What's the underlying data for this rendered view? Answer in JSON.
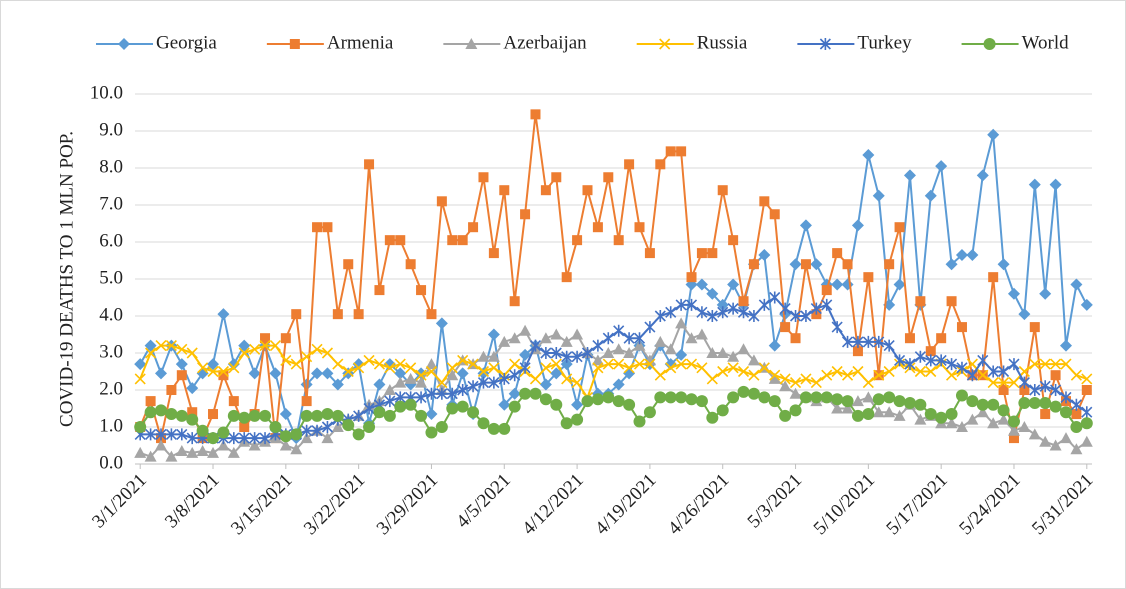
{
  "chart_data": {
    "type": "line",
    "y_label": "COVID-19 DEATHS TO 1 MLN POP.",
    "categories": [
      "3/1/2021",
      null,
      null,
      null,
      null,
      null,
      null,
      "3/8/2021",
      null,
      null,
      null,
      null,
      null,
      null,
      "3/15/2021",
      null,
      null,
      null,
      null,
      null,
      null,
      "3/22/2021",
      null,
      null,
      null,
      null,
      null,
      null,
      "3/29/2021",
      null,
      null,
      null,
      null,
      null,
      null,
      "4/5/2021",
      null,
      null,
      null,
      null,
      null,
      null,
      "4/12/2021",
      null,
      null,
      null,
      null,
      null,
      null,
      "4/19/2021",
      null,
      null,
      null,
      null,
      null,
      null,
      "4/26/2021",
      null,
      null,
      null,
      null,
      null,
      null,
      "5/3/2021",
      null,
      null,
      null,
      null,
      null,
      null,
      "5/10/2021",
      null,
      null,
      null,
      null,
      null,
      null,
      "5/17/2021",
      null,
      null,
      null,
      null,
      null,
      null,
      "5/24/2021",
      null,
      null,
      null,
      null,
      null,
      null,
      "5/31/2021"
    ],
    "ylim": [
      0,
      10
    ],
    "yticks": [
      {
        "value": 0,
        "label": "0.0"
      },
      {
        "value": 1,
        "label": "1.0"
      },
      {
        "value": 2,
        "label": "2.0"
      },
      {
        "value": 3,
        "label": "3.0"
      },
      {
        "value": 4,
        "label": "4.0"
      },
      {
        "value": 5,
        "label": "5.0"
      },
      {
        "value": 6,
        "label": "6.0"
      },
      {
        "value": 7,
        "label": "7.0"
      },
      {
        "value": 8,
        "label": "8.0"
      },
      {
        "value": 9,
        "label": "9.0"
      },
      {
        "value": 10,
        "label": "10.0"
      }
    ],
    "grid": true,
    "legend": "top",
    "series": [
      {
        "name": "Georgia",
        "color": "#5b9bd5",
        "marker": "diamond",
        "values": [
          2.7,
          3.2,
          2.45,
          3.2,
          2.7,
          2.05,
          2.45,
          2.7,
          4.05,
          2.7,
          3.2,
          2.45,
          3.2,
          2.45,
          1.35,
          0.7,
          2.15,
          2.45,
          2.45,
          2.15,
          2.45,
          2.7,
          1.1,
          2.15,
          2.7,
          2.45,
          2.15,
          2.45,
          1.35,
          3.8,
          1.6,
          2.45,
          1.35,
          2.45,
          3.5,
          1.6,
          1.9,
          2.95,
          3.2,
          2.15,
          2.45,
          2.7,
          1.6,
          2.95,
          1.9,
          1.9,
          2.15,
          2.45,
          3.2,
          2.7,
          3.2,
          2.7,
          2.95,
          4.85,
          4.85,
          4.6,
          4.3,
          4.85,
          4.3,
          5.4,
          5.65,
          3.2,
          4.05,
          5.4,
          6.45,
          5.4,
          4.85,
          4.85,
          4.85,
          6.45,
          8.35,
          7.25,
          4.3,
          4.85,
          7.8,
          4.3,
          7.25,
          8.05,
          5.4,
          5.65,
          5.65,
          7.8,
          8.9,
          5.4,
          4.6,
          4.05,
          7.55,
          4.6,
          7.55,
          3.2,
          4.85,
          4.3
        ]
      },
      {
        "name": "Armenia",
        "color": "#ed7d31",
        "marker": "square",
        "values": [
          1.0,
          1.7,
          0.7,
          2.0,
          2.4,
          1.4,
          0.7,
          1.35,
          2.4,
          1.7,
          1.0,
          1.35,
          3.4,
          0.7,
          3.4,
          4.05,
          1.7,
          6.4,
          6.4,
          4.05,
          5.4,
          4.05,
          8.1,
          4.7,
          6.05,
          6.05,
          5.4,
          4.7,
          4.05,
          7.1,
          6.05,
          6.05,
          6.4,
          7.75,
          5.7,
          7.4,
          4.4,
          6.75,
          9.45,
          7.4,
          7.75,
          5.05,
          6.05,
          7.4,
          6.4,
          7.75,
          6.05,
          8.1,
          6.4,
          5.7,
          8.1,
          8.45,
          8.45,
          5.05,
          5.7,
          5.7,
          7.4,
          6.05,
          4.4,
          5.4,
          7.1,
          6.75,
          3.7,
          3.4,
          5.4,
          4.05,
          4.7,
          5.7,
          5.4,
          3.05,
          5.05,
          2.4,
          5.4,
          6.4,
          3.4,
          4.4,
          3.05,
          3.4,
          4.4,
          3.7,
          2.4,
          2.4,
          5.05,
          2.0,
          0.7,
          2.0,
          3.7,
          1.35,
          2.4,
          1.7,
          1.35,
          2.0
        ]
      },
      {
        "name": "Azerbaijan",
        "color": "#a5a5a5",
        "marker": "triangle",
        "values": [
          0.3,
          0.2,
          0.5,
          0.2,
          0.35,
          0.3,
          0.35,
          0.3,
          0.5,
          0.3,
          0.6,
          0.5,
          0.6,
          0.7,
          0.5,
          0.4,
          0.7,
          0.9,
          0.7,
          1.0,
          1.2,
          1.3,
          1.6,
          1.7,
          2.0,
          2.2,
          2.3,
          2.2,
          2.7,
          2.0,
          2.4,
          2.8,
          2.7,
          2.9,
          2.9,
          3.3,
          3.4,
          3.6,
          3.1,
          3.4,
          3.5,
          3.3,
          3.5,
          3.0,
          2.8,
          3.0,
          3.1,
          3.0,
          3.2,
          2.8,
          3.3,
          3.1,
          3.8,
          3.4,
          3.5,
          3.0,
          3.0,
          2.9,
          3.1,
          2.8,
          2.6,
          2.3,
          2.1,
          1.9,
          1.8,
          1.7,
          1.8,
          1.5,
          1.5,
          1.7,
          1.8,
          1.4,
          1.4,
          1.3,
          1.6,
          1.2,
          1.3,
          1.1,
          1.1,
          1.0,
          1.2,
          1.4,
          1.1,
          1.2,
          0.9,
          1.0,
          0.8,
          0.6,
          0.5,
          0.7,
          0.4,
          0.6
        ]
      },
      {
        "name": "Russia",
        "color": "#ffc000",
        "marker": "x",
        "values": [
          2.3,
          3.0,
          3.2,
          3.2,
          3.1,
          3.0,
          2.6,
          2.5,
          2.5,
          2.6,
          3.0,
          3.1,
          3.2,
          3.2,
          2.8,
          2.7,
          2.9,
          3.1,
          3.0,
          2.7,
          2.5,
          2.6,
          2.8,
          2.7,
          2.6,
          2.7,
          2.6,
          2.4,
          2.5,
          2.2,
          2.6,
          2.8,
          2.7,
          2.5,
          2.6,
          2.4,
          2.7,
          2.5,
          2.3,
          2.6,
          2.7,
          2.3,
          2.2,
          1.8,
          2.6,
          2.7,
          2.7,
          2.6,
          2.7,
          2.7,
          2.4,
          2.6,
          2.7,
          2.7,
          2.6,
          2.3,
          2.5,
          2.6,
          2.5,
          2.4,
          2.6,
          2.4,
          2.3,
          2.2,
          2.3,
          2.2,
          2.4,
          2.5,
          2.4,
          2.5,
          2.2,
          2.4,
          2.5,
          2.7,
          2.6,
          2.5,
          2.5,
          2.7,
          2.4,
          2.5,
          2.7,
          2.4,
          2.2,
          2.2,
          2.2,
          2.5,
          2.7,
          2.7,
          2.7,
          2.7,
          2.4,
          2.3
        ]
      },
      {
        "name": "Turkey",
        "color": "#4472c4",
        "marker": "star",
        "values": [
          0.8,
          0.8,
          0.8,
          0.8,
          0.8,
          0.7,
          0.7,
          0.7,
          0.7,
          0.7,
          0.7,
          0.7,
          0.7,
          0.8,
          0.8,
          0.8,
          0.9,
          0.9,
          1.0,
          1.2,
          1.2,
          1.3,
          1.5,
          1.6,
          1.7,
          1.8,
          1.8,
          1.8,
          1.9,
          1.9,
          1.9,
          2.0,
          2.1,
          2.2,
          2.2,
          2.3,
          2.4,
          2.6,
          3.2,
          3.0,
          3.0,
          2.9,
          2.9,
          3.0,
          3.2,
          3.4,
          3.6,
          3.4,
          3.4,
          3.7,
          4.0,
          4.1,
          4.3,
          4.3,
          4.1,
          4.0,
          4.1,
          4.2,
          4.1,
          4.0,
          4.3,
          4.5,
          4.2,
          4.0,
          4.0,
          4.2,
          4.3,
          3.7,
          3.3,
          3.3,
          3.3,
          3.3,
          3.2,
          2.8,
          2.7,
          2.9,
          2.8,
          2.8,
          2.7,
          2.6,
          2.4,
          2.8,
          2.5,
          2.5,
          2.7,
          2.2,
          2.0,
          2.1,
          2.0,
          1.8,
          1.6,
          1.4
        ]
      },
      {
        "name": "World",
        "color": "#70ad47",
        "marker": "circle",
        "values": [
          1.0,
          1.4,
          1.45,
          1.35,
          1.3,
          1.2,
          0.9,
          0.7,
          0.85,
          1.3,
          1.25,
          1.3,
          1.3,
          1.0,
          0.75,
          0.8,
          1.3,
          1.3,
          1.35,
          1.3,
          1.05,
          0.8,
          1.0,
          1.4,
          1.3,
          1.55,
          1.6,
          1.3,
          0.85,
          1.0,
          1.5,
          1.55,
          1.4,
          1.1,
          0.95,
          0.95,
          1.55,
          1.9,
          1.9,
          1.75,
          1.6,
          1.1,
          1.2,
          1.7,
          1.75,
          1.8,
          1.7,
          1.6,
          1.15,
          1.4,
          1.8,
          1.8,
          1.8,
          1.75,
          1.7,
          1.25,
          1.45,
          1.8,
          1.95,
          1.9,
          1.8,
          1.7,
          1.3,
          1.45,
          1.8,
          1.8,
          1.8,
          1.75,
          1.7,
          1.3,
          1.35,
          1.75,
          1.8,
          1.7,
          1.65,
          1.6,
          1.35,
          1.25,
          1.35,
          1.85,
          1.7,
          1.6,
          1.6,
          1.45,
          1.15,
          1.65,
          1.65,
          1.65,
          1.55,
          1.4,
          1.0,
          1.1
        ]
      }
    ]
  }
}
